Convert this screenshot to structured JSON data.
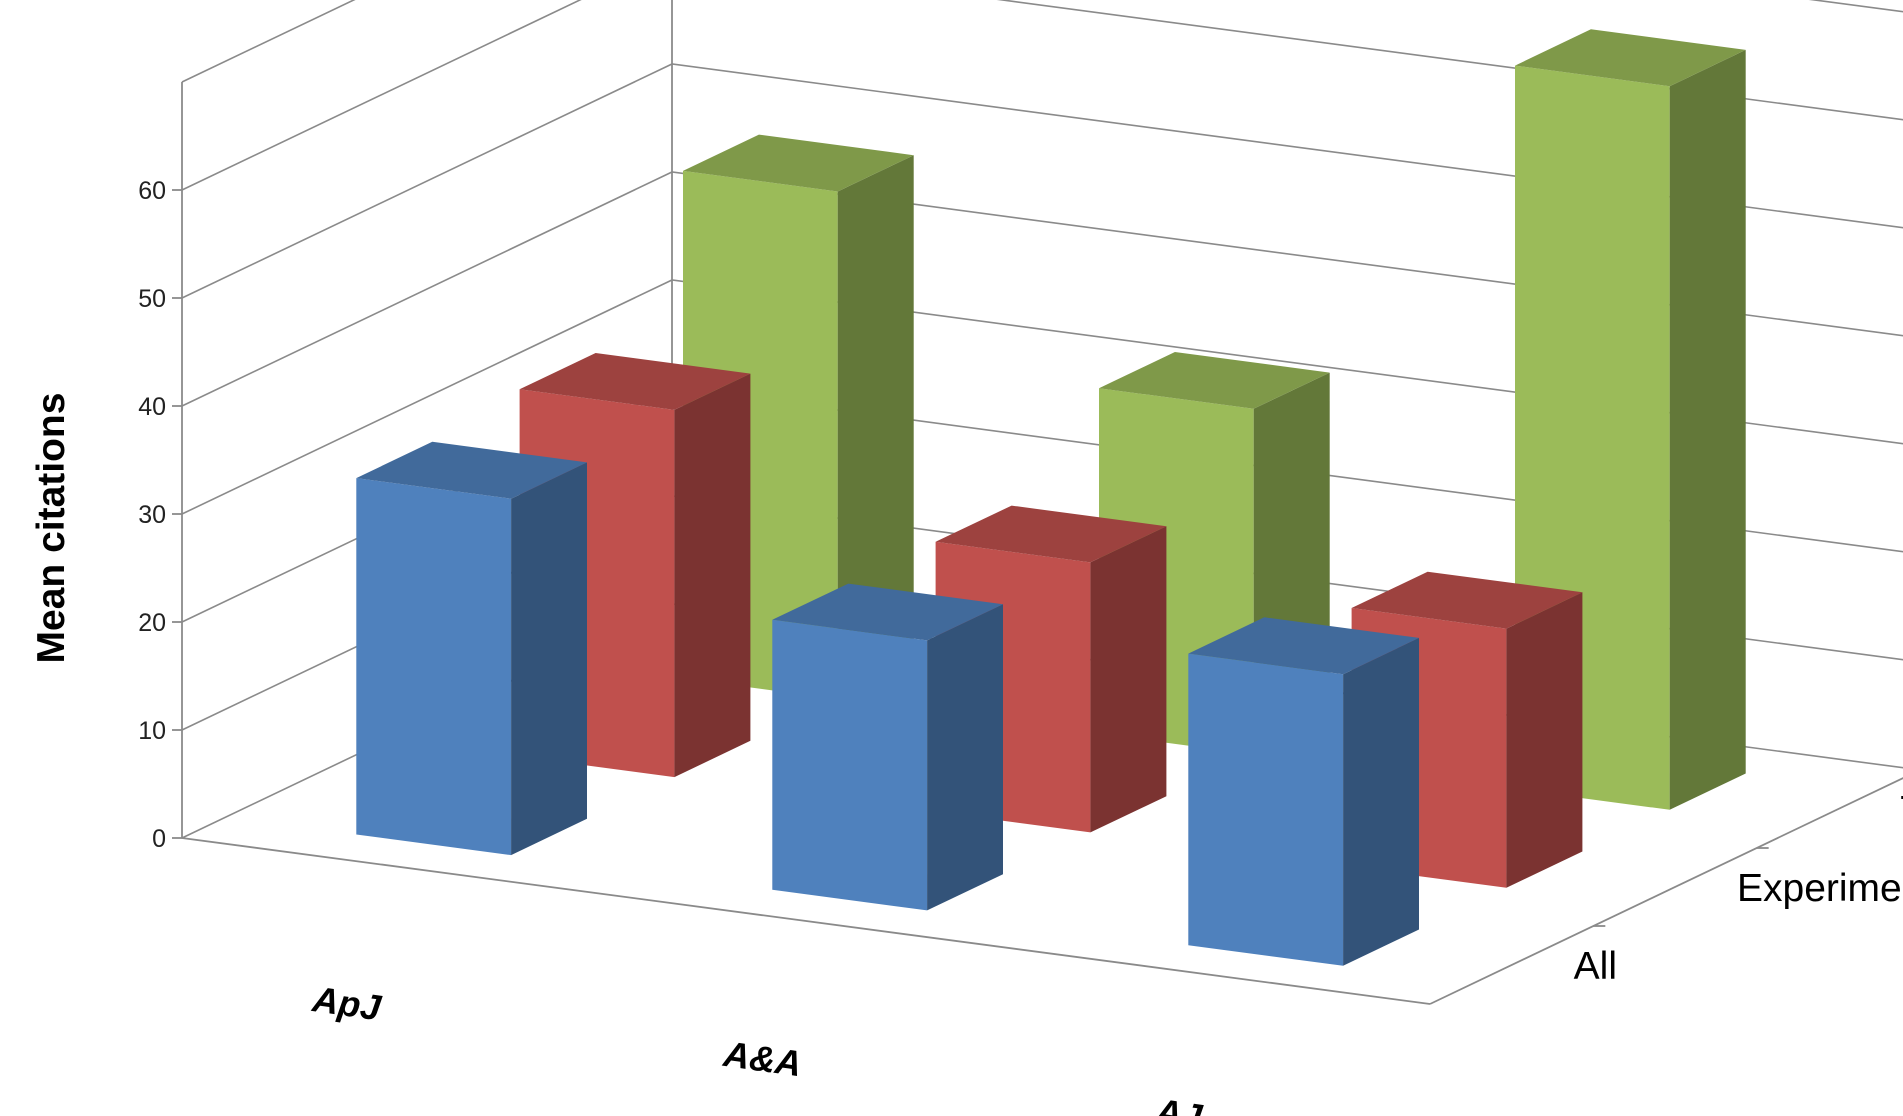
{
  "chart_data": {
    "type": "bar",
    "subtype": "3d-clustered-column",
    "categories": [
      "ApJ",
      "A&A",
      "AJ"
    ],
    "series": [
      {
        "name": "All",
        "values": [
          33,
          25,
          27
        ],
        "color": "#4f81bd"
      },
      {
        "name": "Experimental",
        "values": [
          34,
          25,
          24
        ],
        "color": "#c0504d"
      },
      {
        "name": "Theoretical",
        "values": [
          47,
          32,
          67
        ],
        "color": "#9bbb59"
      }
    ],
    "ylabel": "Mean citations",
    "yticks": [
      0,
      10,
      20,
      30,
      40,
      50,
      60
    ],
    "ylim": [
      0,
      70
    ],
    "grid": true,
    "legend": "depth-axis"
  }
}
